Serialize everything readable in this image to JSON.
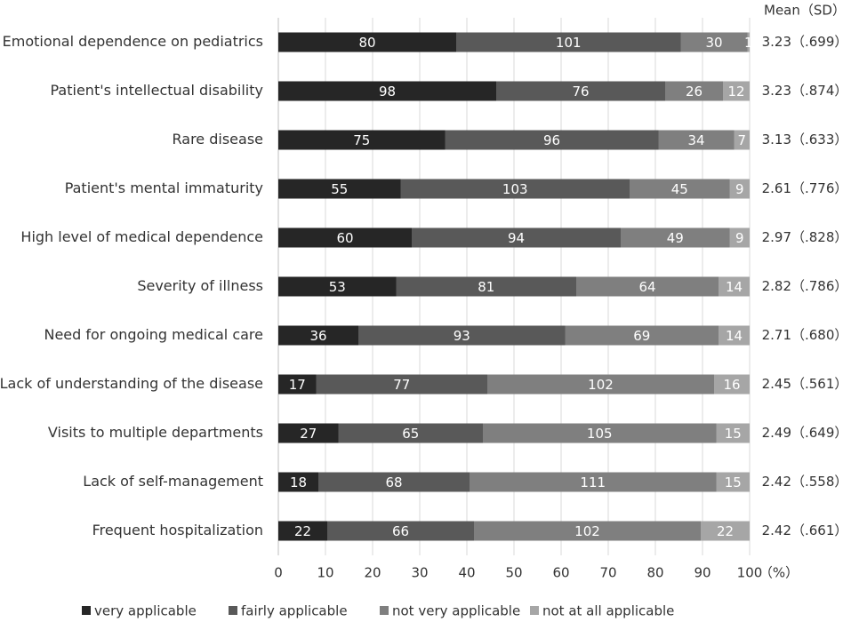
{
  "chart_data": {
    "type": "bar",
    "orientation": "horizontal",
    "stacked": "percent",
    "categories": [
      "Emotional dependence on pediatrics",
      "Patient's intellectual disability",
      "Rare disease",
      "Patient's mental immaturity",
      "High level of medical dependence",
      "Severity of illness",
      "Need for ongoing medical care",
      "Lack of understanding of the disease",
      "Visits to multiple departments",
      "Lack of self-management",
      "Frequent hospitalization"
    ],
    "series": [
      {
        "name": "very applicable",
        "color": "#262626",
        "values": [
          80,
          98,
          75,
          55,
          60,
          53,
          36,
          17,
          27,
          18,
          22
        ]
      },
      {
        "name": "fairly applicable",
        "color": "#595959",
        "values": [
          101,
          76,
          96,
          103,
          94,
          81,
          93,
          77,
          65,
          68,
          66
        ]
      },
      {
        "name": "not very applicable",
        "color": "#7f7f7f",
        "values": [
          30,
          26,
          34,
          45,
          49,
          64,
          69,
          102,
          105,
          111,
          102
        ]
      },
      {
        "name": "not at all applicable",
        "color": "#a6a6a6",
        "values": [
          1,
          12,
          7,
          9,
          9,
          14,
          14,
          16,
          15,
          15,
          22
        ]
      }
    ],
    "xlabel": "（%）",
    "xlim": [
      0,
      100
    ],
    "xticks": [
      0,
      10,
      20,
      30,
      40,
      50,
      60,
      70,
      80,
      90,
      100
    ],
    "side_header": "Mean（SD）",
    "side_values": [
      "3.23（.699）",
      "3.23（.874）",
      "3.13（.633）",
      "2.61（.776）",
      "2.97（.828）",
      "2.82（.786）",
      "2.71（.680）",
      "2.45（.561）",
      "2.49（.649）",
      "2.42（.558）",
      "2.42（.661）"
    ],
    "legend": "bottom"
  }
}
